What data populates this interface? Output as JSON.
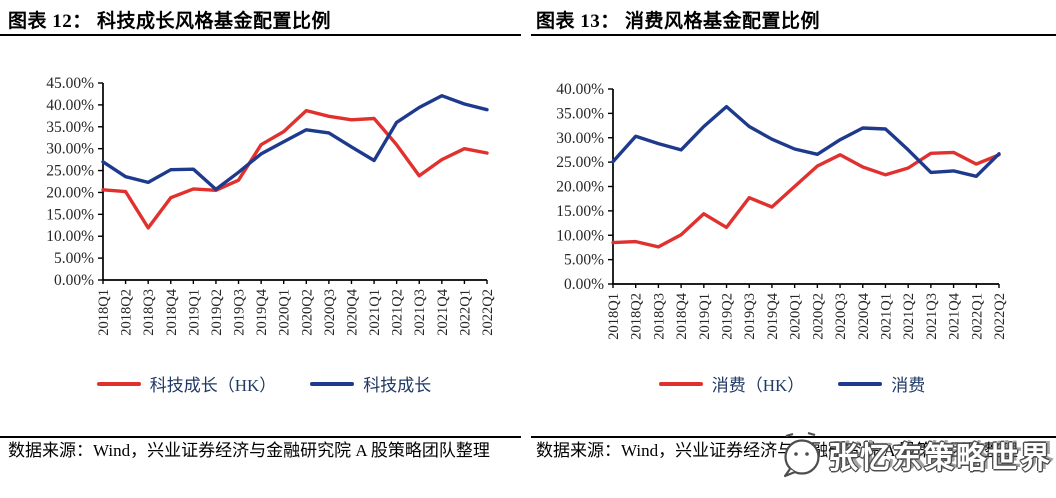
{
  "source_note": "数据来源：Wind，兴业证券经济与金融研究院 A 股策略团队整理",
  "watermark": {
    "text": "张忆东策略世界",
    "icon": "speech-bubble-icon"
  },
  "colors": {
    "series_red": "#e0312e",
    "series_blue": "#1e3a8c",
    "legend_text": "#1f3864",
    "axis": "#000000",
    "tick_label": "#262626"
  },
  "chart_data": [
    {
      "type": "line",
      "title": "图表 12： 科技成长风格基金配置比例",
      "xlabel": "",
      "ylabel": "",
      "ylim": [
        0,
        45
      ],
      "ytick_step": 5,
      "ytick_format": "0.00%",
      "grid": false,
      "legend_position": "bottom",
      "categories": [
        "2018Q1",
        "2018Q2",
        "2018Q3",
        "2018Q4",
        "2019Q1",
        "2019Q2",
        "2019Q3",
        "2019Q4",
        "2020Q1",
        "2020Q2",
        "2020Q3",
        "2020Q4",
        "2021Q1",
        "2021Q2",
        "2021Q3",
        "2021Q4",
        "2022Q1",
        "2022Q2"
      ],
      "series": [
        {
          "name": "科技成长（HK）",
          "color": "#e0312e",
          "values": [
            20.6,
            20.2,
            11.9,
            18.8,
            20.8,
            20.5,
            22.8,
            30.9,
            33.9,
            38.7,
            37.4,
            36.6,
            36.9,
            30.9,
            23.8,
            27.5,
            30.0,
            29.0
          ]
        },
        {
          "name": "科技成长",
          "color": "#1e3a8c",
          "values": [
            27.0,
            23.6,
            22.3,
            25.2,
            25.3,
            20.7,
            24.6,
            28.8,
            31.6,
            34.3,
            33.6,
            30.4,
            27.3,
            36.0,
            39.4,
            42.1,
            40.2,
            38.9
          ]
        }
      ]
    },
    {
      "type": "line",
      "title": "图表 13： 消费风格基金配置比例",
      "xlabel": "",
      "ylabel": "",
      "ylim": [
        0,
        40
      ],
      "ytick_step": 5,
      "ytick_format": "0.00%",
      "grid": false,
      "legend_position": "bottom",
      "categories": [
        "2018Q1",
        "2018Q2",
        "2018Q3",
        "2018Q4",
        "2019Q1",
        "2019Q2",
        "2019Q3",
        "2019Q4",
        "2020Q1",
        "2020Q2",
        "2020Q3",
        "2020Q4",
        "2021Q1",
        "2021Q2",
        "2021Q3",
        "2021Q4",
        "2022Q1",
        "2022Q2"
      ],
      "series": [
        {
          "name": "消费（HK）",
          "color": "#e0312e",
          "values": [
            8.5,
            8.7,
            7.6,
            10.1,
            14.4,
            11.6,
            17.7,
            15.8,
            20.0,
            24.2,
            26.5,
            24.0,
            22.4,
            23.8,
            26.8,
            27.0,
            24.6,
            26.5
          ]
        },
        {
          "name": "消费",
          "color": "#1e3a8c",
          "values": [
            25.1,
            30.3,
            28.8,
            27.5,
            32.3,
            36.4,
            32.3,
            29.7,
            27.7,
            26.6,
            29.6,
            32.0,
            31.8,
            27.5,
            22.9,
            23.2,
            22.1,
            26.7
          ]
        }
      ]
    }
  ]
}
